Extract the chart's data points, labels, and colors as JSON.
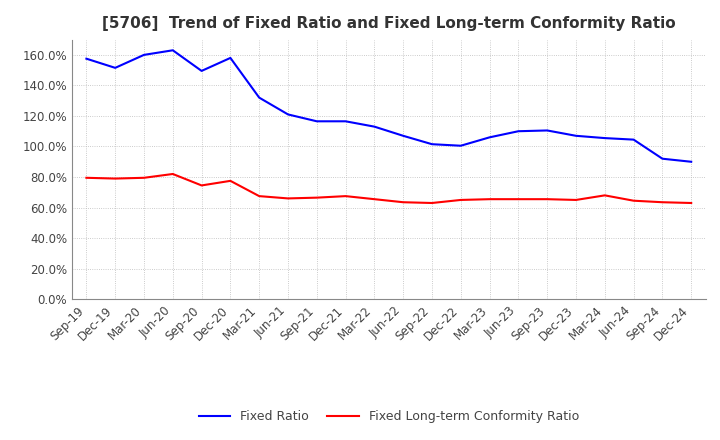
{
  "title": "[5706]  Trend of Fixed Ratio and Fixed Long-term Conformity Ratio",
  "labels": [
    "Sep-19",
    "Dec-19",
    "Mar-20",
    "Jun-20",
    "Sep-20",
    "Dec-20",
    "Mar-21",
    "Jun-21",
    "Sep-21",
    "Dec-21",
    "Mar-22",
    "Jun-22",
    "Sep-22",
    "Dec-22",
    "Mar-23",
    "Jun-23",
    "Sep-23",
    "Dec-23",
    "Mar-24",
    "Jun-24",
    "Sep-24",
    "Dec-24"
  ],
  "fixed_ratio": [
    157.5,
    151.5,
    160.0,
    163.0,
    149.5,
    158.0,
    132.0,
    121.0,
    116.5,
    116.5,
    113.0,
    107.0,
    101.5,
    100.5,
    106.0,
    110.0,
    110.5,
    107.0,
    105.5,
    104.5,
    92.0,
    90.0
  ],
  "fixed_long_term": [
    79.5,
    79.0,
    79.5,
    82.0,
    74.5,
    77.5,
    67.5,
    66.0,
    66.5,
    67.5,
    65.5,
    63.5,
    63.0,
    65.0,
    65.5,
    65.5,
    65.5,
    65.0,
    68.0,
    64.5,
    63.5,
    63.0
  ],
  "fixed_ratio_color": "#0000FF",
  "fixed_long_term_color": "#FF0000",
  "ylim": [
    0,
    170
  ],
  "ytick_values": [
    0,
    20,
    40,
    60,
    80,
    100,
    120,
    140,
    160
  ],
  "background_color": "#FFFFFF",
  "grid_color": "#BBBBBB",
  "title_color": "#333333",
  "legend_fixed_ratio": "Fixed Ratio",
  "legend_fixed_long_term": "Fixed Long-term Conformity Ratio",
  "title_fontsize": 11,
  "axis_fontsize": 8.5,
  "legend_fontsize": 9
}
